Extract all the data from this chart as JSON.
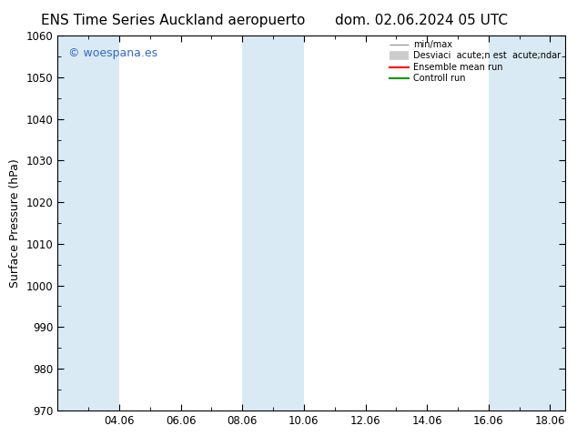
{
  "title_left": "ENS Time Series Auckland aeropuerto",
  "title_right": "dom. 02.06.2024 05 UTC",
  "ylabel": "Surface Pressure (hPa)",
  "ylim": [
    970,
    1060
  ],
  "yticks": [
    970,
    980,
    990,
    1000,
    1010,
    1020,
    1030,
    1040,
    1050,
    1060
  ],
  "xtick_labels": [
    "04.06",
    "06.06",
    "08.06",
    "10.06",
    "12.06",
    "14.06",
    "16.06",
    "18.06"
  ],
  "xtick_positions": [
    4,
    6,
    8,
    10,
    12,
    14,
    16,
    18
  ],
  "xlim": [
    2,
    18.5
  ],
  "shaded_bands": [
    {
      "x_start": 2,
      "x_end": 4,
      "color": "#daeaf5",
      "alpha": 1.0
    },
    {
      "x_start": 8,
      "x_end": 10,
      "color": "#daeaf5",
      "alpha": 1.0
    },
    {
      "x_start": 16,
      "x_end": 18.5,
      "color": "#daeaf5",
      "alpha": 1.0
    }
  ],
  "watermark_text": "© woespana.es",
  "watermark_color": "#3366cc",
  "background_color": "#ffffff",
  "plot_bg_color": "#ffffff",
  "legend_labels": [
    "min/max",
    "Desviaci  acute;n est  acute;ndar",
    "Ensemble mean run",
    "Controll run"
  ],
  "legend_colors": [
    "#999999",
    "#cccccc",
    "#ff0000",
    "#009900"
  ],
  "legend_lw": [
    1.0,
    7,
    1.5,
    1.5
  ],
  "title_fontsize": 11,
  "tick_fontsize": 8.5,
  "ylabel_fontsize": 9,
  "watermark_fontsize": 9
}
